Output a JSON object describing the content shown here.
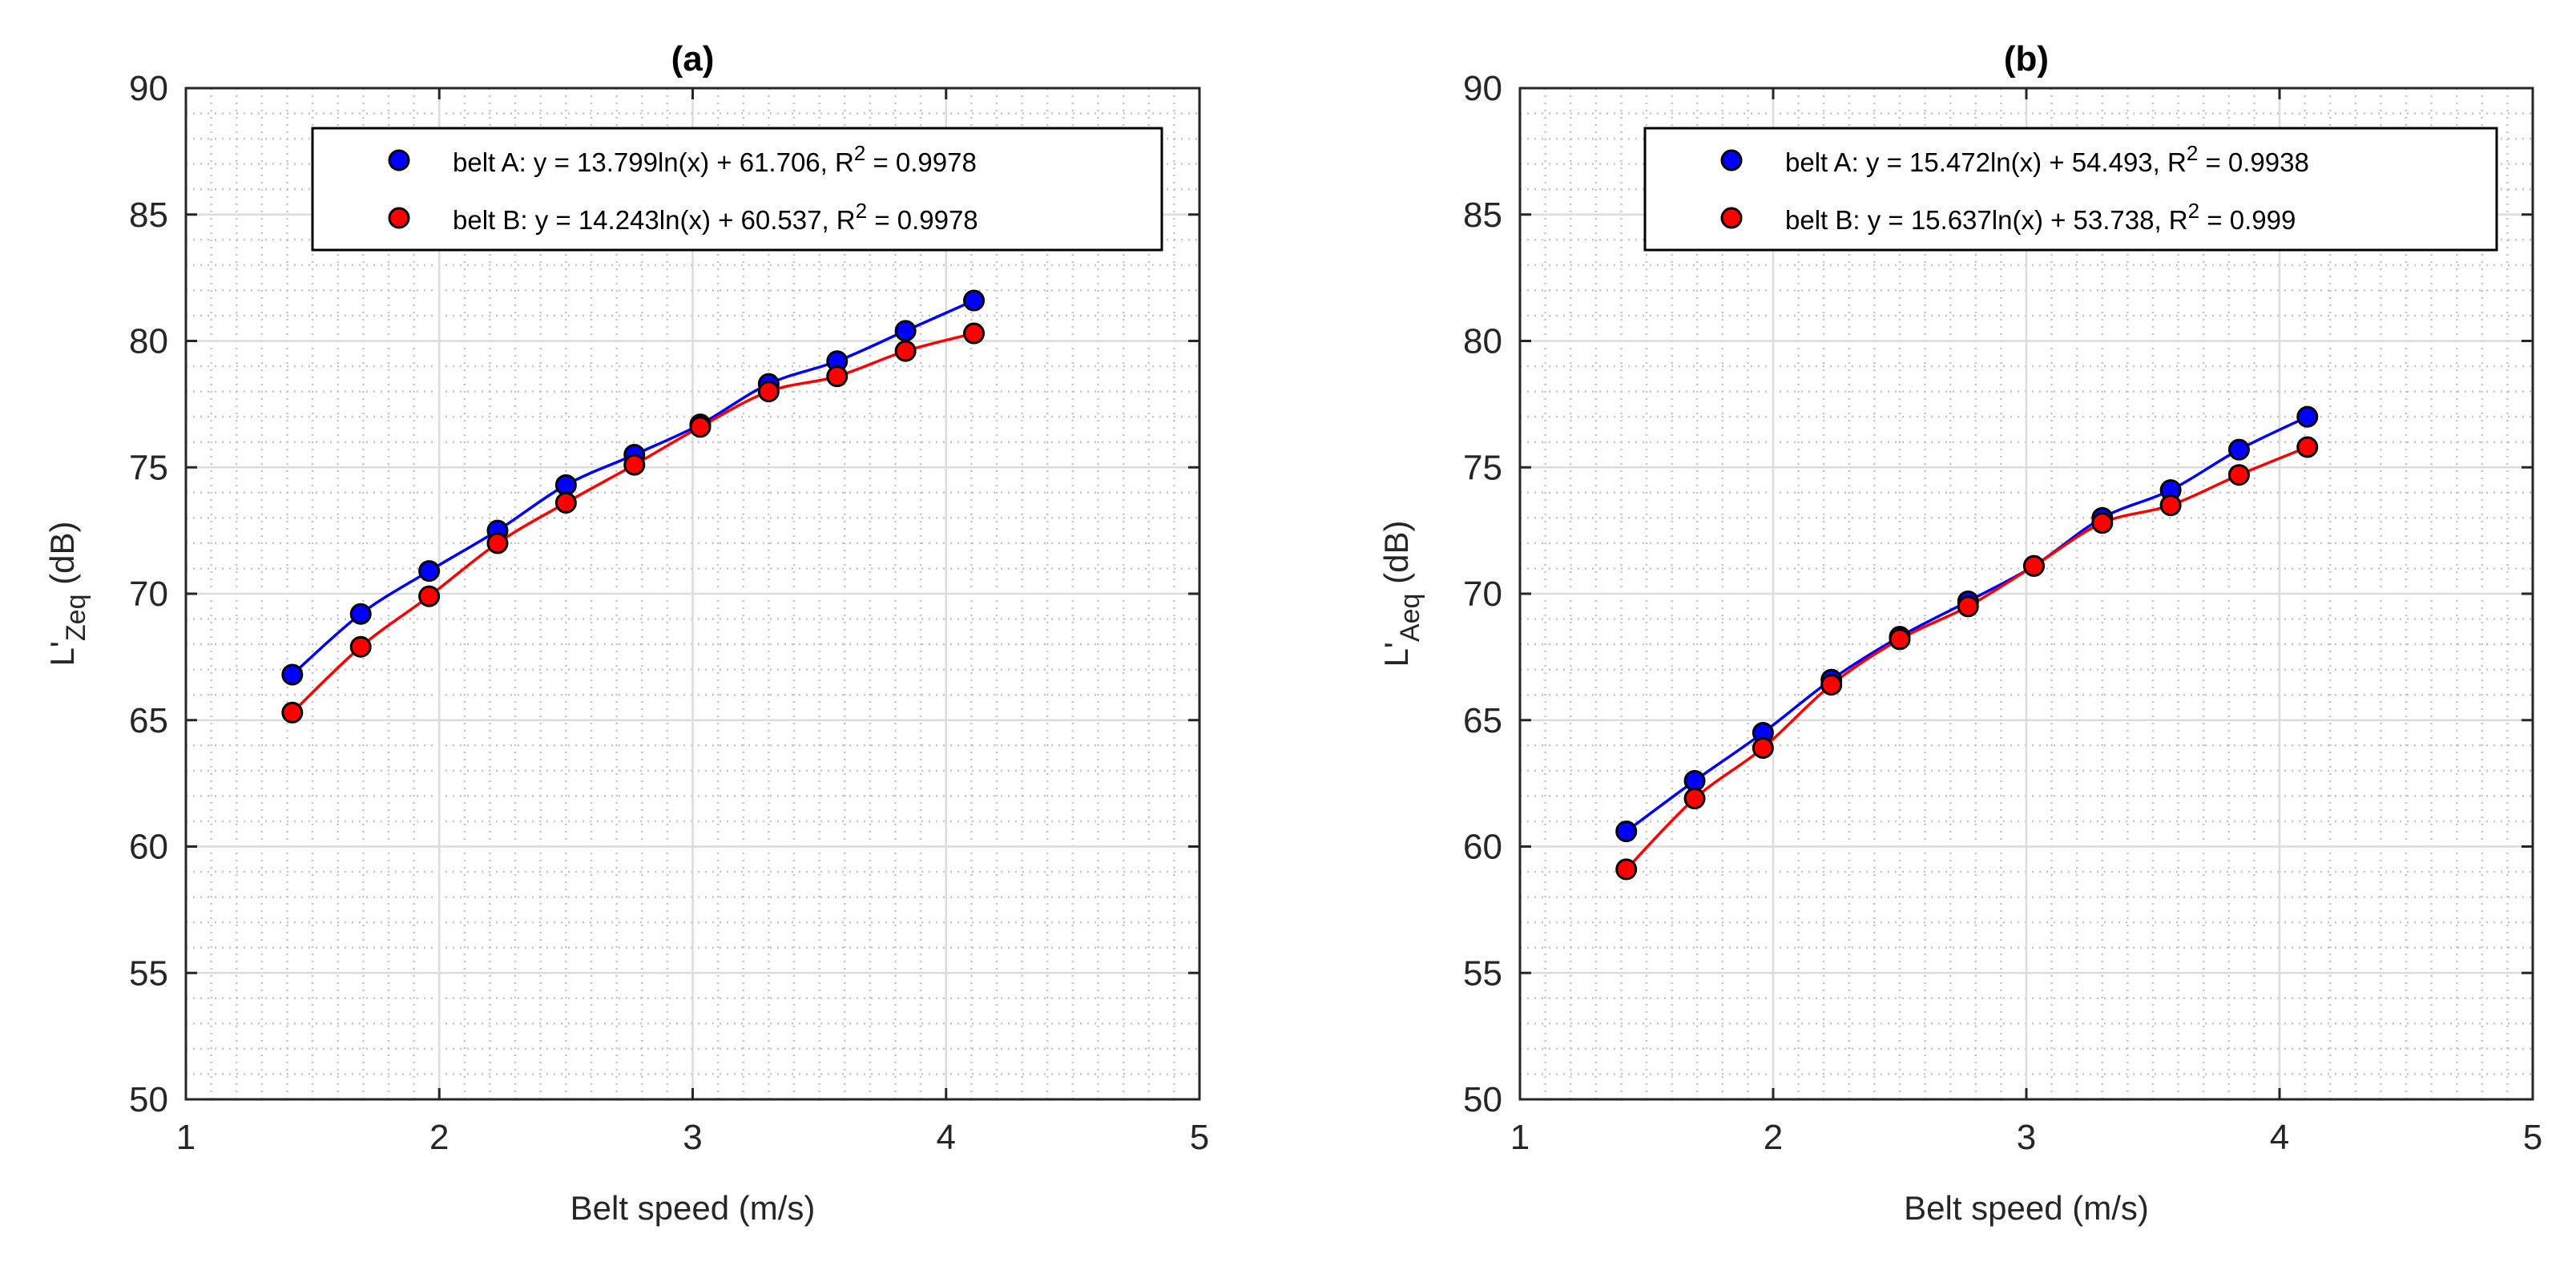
{
  "chart_data": [
    {
      "type": "scatter",
      "title": "(a)",
      "xlabel": "Belt speed (m/s)",
      "ylabel_main": "L'",
      "ylabel_sub": "Zeq",
      "ylabel_unit": "(dB)",
      "xlim": [
        1,
        5
      ],
      "ylim": [
        50,
        90
      ],
      "xticks": [
        1,
        2,
        3,
        4,
        5
      ],
      "yticks": [
        50,
        55,
        60,
        65,
        70,
        75,
        80,
        85,
        90
      ],
      "grid": true,
      "legend_position": "top-right",
      "x": [
        1.42,
        1.69,
        1.96,
        2.23,
        2.5,
        2.77,
        3.03,
        3.3,
        3.57,
        3.84,
        4.11
      ],
      "series": [
        {
          "name": "belt A",
          "color": "#0000ff",
          "values": [
            66.8,
            69.2,
            70.9,
            72.5,
            74.3,
            75.5,
            76.7,
            78.3,
            79.2,
            80.4,
            81.6
          ],
          "legend_text": "belt A: y = 13.799ln(x) + 61.706, R",
          "legend_sup": "2",
          "legend_tail": " = 0.9978"
        },
        {
          "name": "belt B",
          "color": "#ff0000",
          "values": [
            65.3,
            67.9,
            69.9,
            72.0,
            73.6,
            75.1,
            76.6,
            78.0,
            78.6,
            79.6,
            80.3
          ],
          "legend_text": "belt B: y = 14.243ln(x) + 60.537, R",
          "legend_sup": "2",
          "legend_tail": " = 0.9978"
        }
      ]
    },
    {
      "type": "scatter",
      "title": "(b)",
      "xlabel": "Belt speed (m/s)",
      "ylabel_main": "L'",
      "ylabel_sub": "Aeq",
      "ylabel_unit": "(dB)",
      "xlim": [
        1,
        5
      ],
      "ylim": [
        50,
        90
      ],
      "xticks": [
        1,
        2,
        3,
        4,
        5
      ],
      "yticks": [
        50,
        55,
        60,
        65,
        70,
        75,
        80,
        85,
        90
      ],
      "grid": true,
      "legend_position": "top-right",
      "x": [
        1.42,
        1.69,
        1.96,
        2.23,
        2.5,
        2.77,
        3.03,
        3.3,
        3.57,
        3.84,
        4.11
      ],
      "series": [
        {
          "name": "belt A",
          "color": "#0000ff",
          "values": [
            60.6,
            62.6,
            64.5,
            66.6,
            68.3,
            69.7,
            71.1,
            73.0,
            74.1,
            75.7,
            77.0
          ],
          "legend_text": "belt A: y = 15.472ln(x) + 54.493, R",
          "legend_sup": "2",
          "legend_tail": " = 0.9938"
        },
        {
          "name": "belt B",
          "color": "#ff0000",
          "values": [
            59.1,
            61.9,
            63.9,
            66.4,
            68.2,
            69.5,
            71.1,
            72.8,
            73.5,
            74.7,
            75.8
          ],
          "legend_text": "belt B: y = 15.637ln(x) + 53.738, R",
          "legend_sup": "2",
          "legend_tail": " = 0.999"
        }
      ]
    }
  ]
}
